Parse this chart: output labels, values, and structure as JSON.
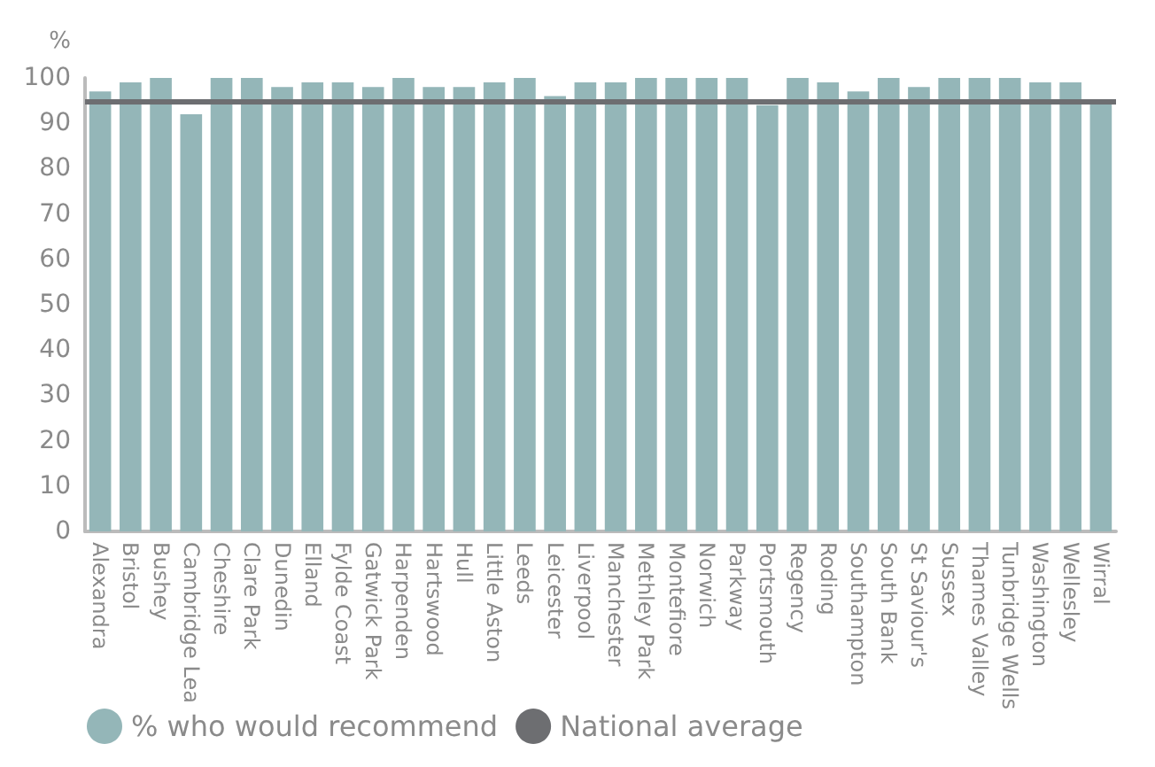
{
  "chart_data": {
    "type": "bar",
    "ylabel": "%",
    "categories": [
      "Alexandra",
      "Bristol",
      "Bushey",
      "Cambridge Lea",
      "Cheshire",
      "Clare Park",
      "Dunedin",
      "Elland",
      "Fylde Coast",
      "Gatwick Park",
      "Harpenden",
      "Hartswood",
      "Hull",
      "Little Aston",
      "Leeds",
      "Leicester",
      "Liverpool",
      "Manchester",
      "Methley Park",
      "Montefiore",
      "Norwich",
      "Parkway",
      "Portsmouth",
      "Regency",
      "Roding",
      "Southampton",
      "South Bank",
      "St Saviour's",
      "Sussex",
      "Thames Valley",
      "Tunbridge Wells",
      "Washington",
      "Wellesley",
      "Wirral"
    ],
    "series": [
      {
        "name": "% who would recommend",
        "color": "#94b6b8",
        "values": [
          97,
          99,
          100,
          92,
          100,
          100,
          98,
          99,
          99,
          98,
          100,
          98,
          98,
          99,
          100,
          96,
          99,
          99,
          100,
          100,
          100,
          100,
          94,
          100,
          99,
          97,
          100,
          98,
          100,
          100,
          100,
          99,
          99,
          95
        ]
      }
    ],
    "ref_lines": [
      {
        "axis": "y",
        "value": 95,
        "label": "National average",
        "color": "#6d6e71"
      }
    ],
    "ylim": [
      0,
      100
    ],
    "yticks": [
      0,
      10,
      20,
      30,
      40,
      50,
      60,
      70,
      80,
      90,
      100
    ],
    "grid": false,
    "legend": "bottom left"
  }
}
